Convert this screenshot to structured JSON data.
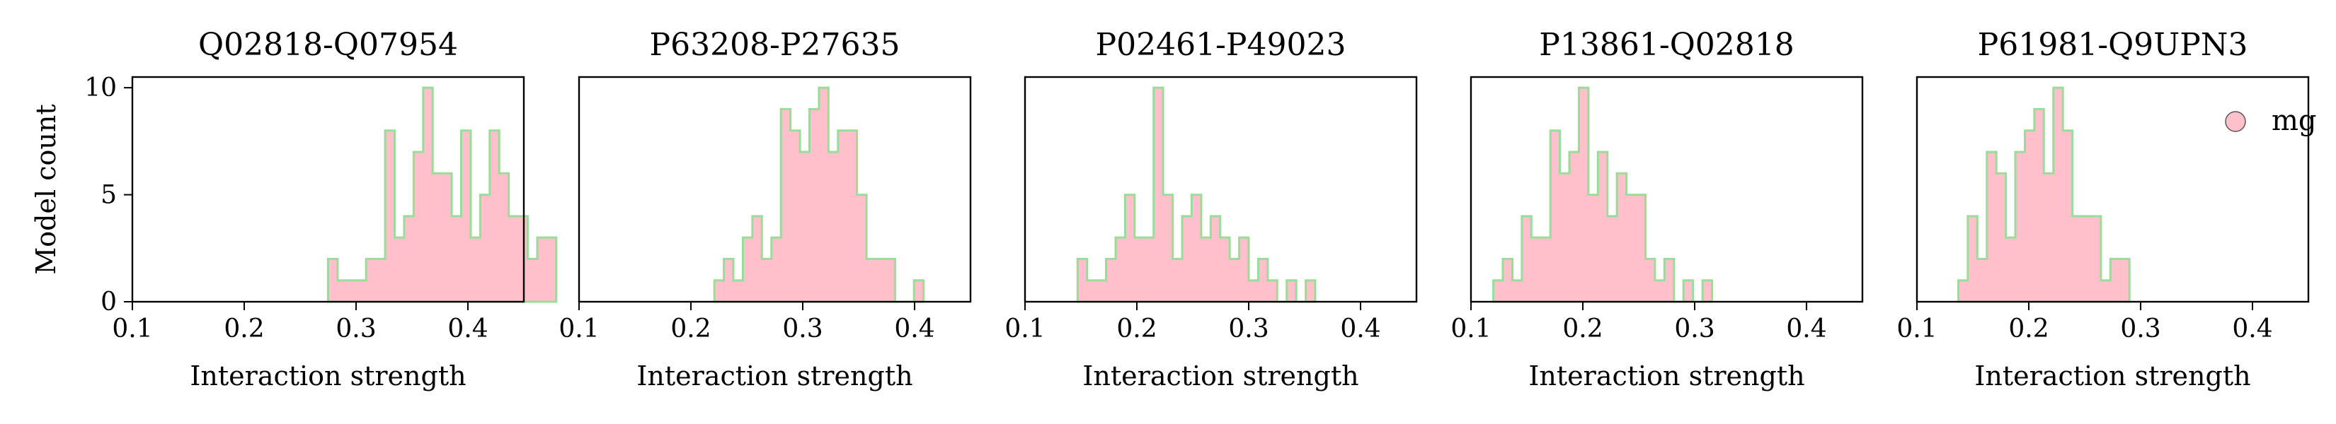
{
  "chart_data": [
    {
      "type": "histogram",
      "title": "Q02818-Q07954",
      "xlabel": "Interaction strength",
      "ylabel": "Model count",
      "xlim": [
        0.1,
        0.45
      ],
      "ylim": [
        0,
        10.5
      ],
      "xticks": [
        "0.1",
        "0.2",
        "0.3",
        "0.4"
      ],
      "yticks": [
        "0",
        "5",
        "10"
      ],
      "bin_width": 0.0085,
      "series": [
        {
          "fill": "#ffc0cb",
          "edge": "#99dd99",
          "bin_start": 0.275,
          "counts": [
            2,
            1,
            1,
            1,
            2,
            2,
            8,
            3,
            4,
            7,
            10,
            6,
            6,
            4,
            8,
            3,
            5,
            8,
            6,
            4,
            4,
            2,
            3,
            3
          ]
        }
      ]
    },
    {
      "type": "histogram",
      "title": "P63208-P27635",
      "xlabel": "Interaction strength",
      "ylabel": "",
      "xlim": [
        0.1,
        0.45
      ],
      "ylim": [
        0,
        10.5
      ],
      "xticks": [
        "0.1",
        "0.2",
        "0.3",
        "0.4"
      ],
      "yticks": [],
      "bin_width": 0.0085,
      "series": [
        {
          "fill": "#ffc0cb",
          "edge": "#99dd99",
          "bin_start": 0.221,
          "counts": [
            1,
            2,
            1,
            3,
            4,
            2,
            3,
            9,
            8,
            7,
            9,
            10,
            7,
            8,
            8,
            5,
            2,
            2,
            2,
            0,
            0,
            1
          ]
        }
      ]
    },
    {
      "type": "histogram",
      "title": "P02461-P49023",
      "xlabel": "Interaction strength",
      "ylabel": "",
      "xlim": [
        0.1,
        0.45
      ],
      "ylim": [
        0,
        10.5
      ],
      "xticks": [
        "0.1",
        "0.2",
        "0.3",
        "0.4"
      ],
      "yticks": [],
      "bin_width": 0.0085,
      "series": [
        {
          "fill": "#ffc0cb",
          "edge": "#99dd99",
          "bin_start": 0.147,
          "counts": [
            2,
            1,
            1,
            2,
            3,
            5,
            3,
            3,
            10,
            5,
            2,
            4,
            5,
            3,
            4,
            3,
            2,
            3,
            1,
            2,
            1,
            0,
            1,
            0,
            1
          ]
        }
      ]
    },
    {
      "type": "histogram",
      "title": "P13861-Q02818",
      "xlabel": "Interaction strength",
      "ylabel": "",
      "xlim": [
        0.1,
        0.45
      ],
      "ylim": [
        0,
        10.5
      ],
      "xticks": [
        "0.1",
        "0.2",
        "0.3",
        "0.4"
      ],
      "yticks": [],
      "bin_width": 0.0085,
      "series": [
        {
          "fill": "#ffc0cb",
          "edge": "#99dd99",
          "bin_start": 0.12,
          "counts": [
            1,
            2,
            1,
            4,
            3,
            3,
            8,
            6,
            7,
            10,
            5,
            7,
            4,
            6,
            5,
            5,
            2,
            1,
            2,
            0,
            1,
            0,
            1
          ]
        }
      ]
    },
    {
      "type": "histogram",
      "title": "P61981-Q9UPN3",
      "xlabel": "Interaction strength",
      "ylabel": "",
      "xlim": [
        0.1,
        0.45
      ],
      "ylim": [
        0,
        10.5
      ],
      "xticks": [
        "0.1",
        "0.2",
        "0.3",
        "0.4"
      ],
      "yticks": [],
      "bin_width": 0.0085,
      "legend": {
        "label": "mg",
        "position": "upper right"
      },
      "series": [
        {
          "fill": "#ffc0cb",
          "edge": "#99dd99",
          "bin_start": 0.137,
          "counts": [
            1,
            4,
            2,
            7,
            6,
            3,
            7,
            8,
            9,
            6,
            10,
            8,
            4,
            4,
            4,
            1,
            2,
            2
          ]
        }
      ]
    }
  ]
}
